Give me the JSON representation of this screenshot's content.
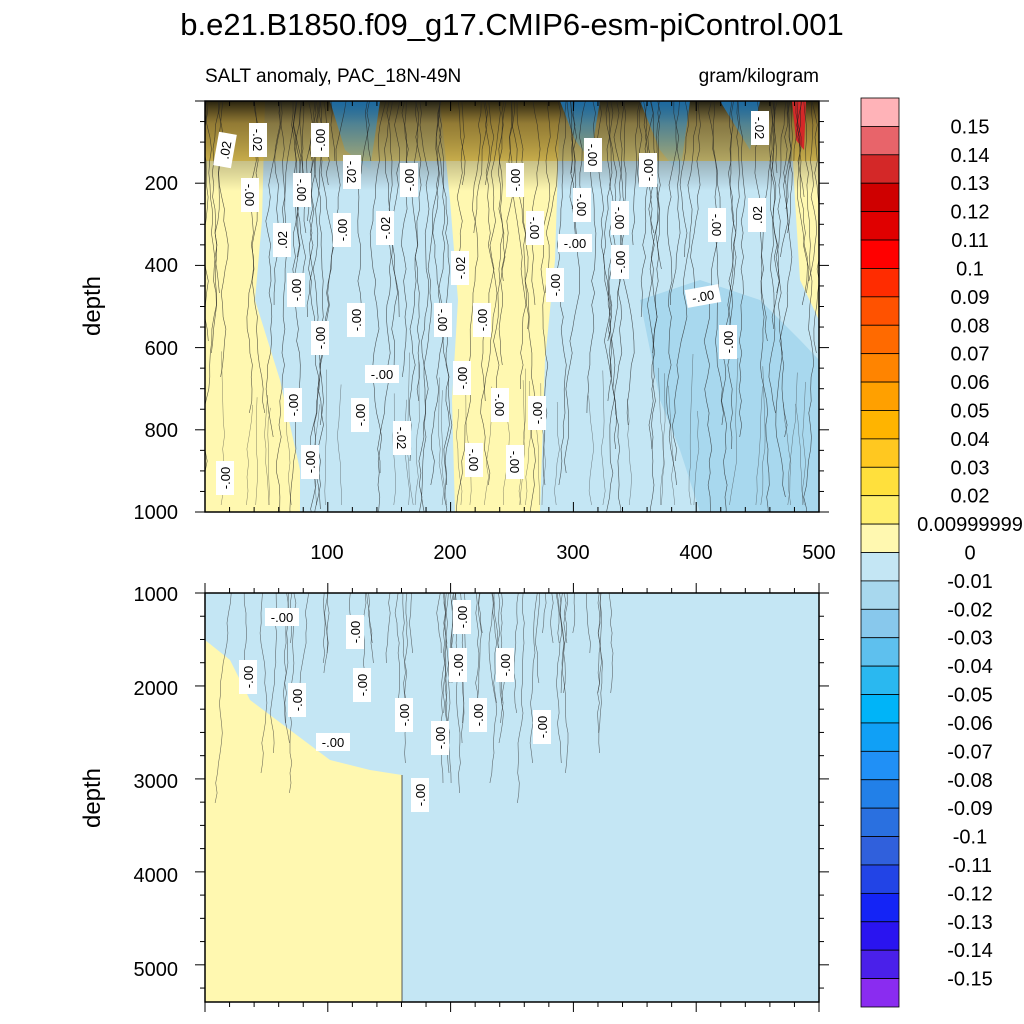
{
  "chart_data": {
    "type": "heatmap",
    "title": "b.e21.B1850.f09_g17.CMIP6-esm-piControl.001",
    "subtitle_left": "SALT anomaly, PAC_18N-49N",
    "subtitle_right": "gram/kilogram",
    "panels": [
      {
        "name": "upper",
        "ylabel": "depth",
        "xlim": [
          0,
          500
        ],
        "ylim": [
          0,
          1000
        ],
        "y_inverted": true,
        "x_ticks": [
          "100",
          "200",
          "300",
          "400",
          "500"
        ],
        "y_ticks": [
          "200",
          "400",
          "600",
          "800",
          "1000"
        ],
        "contour_labels": [
          ".02",
          "-.02",
          "-.00",
          "-.00",
          "-.02",
          "-.00",
          "-.00",
          "-.00",
          "-.00",
          "-.00",
          "-.00",
          "-.00",
          "-.00",
          ".02",
          "-.00",
          "-.02",
          "-.00",
          "-.00",
          "-.00",
          ".02",
          "-.02",
          "-.00",
          "-.02",
          "-.00",
          "-.00",
          "-.00",
          "-.00",
          "-.00",
          "-.00",
          "-.00",
          "-.00",
          "-.00",
          "-.00",
          "-.00",
          "-.00",
          "-.00",
          "-.02",
          "-.00",
          "-.00",
          "-.00",
          "-.00"
        ]
      },
      {
        "name": "lower",
        "ylabel": "depth",
        "xlim": [
          0,
          500
        ],
        "ylim": [
          1000,
          5400
        ],
        "y_inverted": true,
        "y_ticks": [
          "1000",
          "2000",
          "3000",
          "4000",
          "5000"
        ],
        "contour_labels": [
          "-.00",
          "-.00",
          "-.00",
          "-.00",
          "-.00",
          "-.00",
          "-.00",
          "-.00",
          "-.00",
          "-.00",
          "-.00",
          "-.00",
          "-.00",
          "-.00",
          "-.00"
        ]
      }
    ],
    "colorbar": {
      "labels": [
        "0.15",
        "0.14",
        "0.13",
        "0.12",
        "0.11",
        "0.1",
        "0.09",
        "0.08",
        "0.07",
        "0.06",
        "0.05",
        "0.04",
        "0.03",
        "0.02",
        "0.00999999",
        "0",
        "-0.01",
        "-0.02",
        "-0.03",
        "-0.04",
        "-0.05",
        "-0.06",
        "-0.07",
        "-0.08",
        "-0.09",
        "-0.1",
        "-0.11",
        "-0.12",
        "-0.13",
        "-0.14",
        "-0.15"
      ],
      "colors": [
        "#ffb3b8",
        "#e8646a",
        "#d42828",
        "#cf0000",
        "#e00000",
        "#ff0000",
        "#ff2c00",
        "#ff5200",
        "#ff6a00",
        "#ff8400",
        "#ffa000",
        "#ffb400",
        "#ffc820",
        "#ffe03c",
        "#ffef6e",
        "#fff8b0",
        "#c4e6f4",
        "#a8d8ee",
        "#88c8ec",
        "#5ec0ee",
        "#2ab8f0",
        "#00b4f8",
        "#10a0f6",
        "#2090f6",
        "#2280e8",
        "#2a70e0",
        "#3060dc",
        "#2244e6",
        "#1424f6",
        "#2a14f0",
        "#4a20ea",
        "#8a2cf0"
      ]
    }
  }
}
